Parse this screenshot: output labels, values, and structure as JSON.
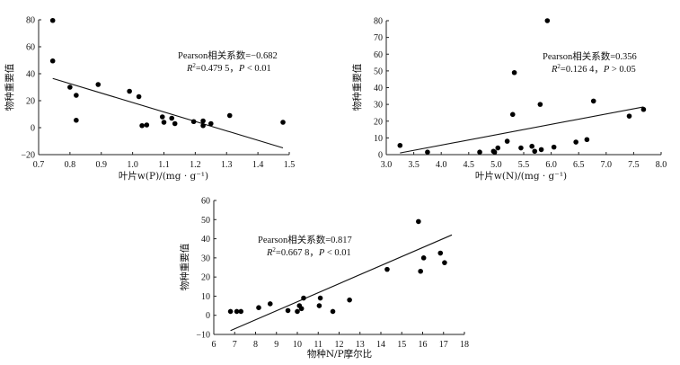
{
  "chart_data": [
    {
      "type": "scatter",
      "xlabel": "叶片w(P)/(mg · g⁻¹)",
      "ylabel": "物种重要值",
      "xlim": [
        0.7,
        1.5
      ],
      "ylim": [
        -20,
        80
      ],
      "xticks": [
        "0.7",
        "0.8",
        "0.9",
        "1.0",
        "1.1",
        "1.2",
        "1.3",
        "1.4",
        "1.5"
      ],
      "yticks": [
        "−20",
        "0",
        "20",
        "40",
        "60",
        "80"
      ],
      "points": [
        {
          "x": 0.745,
          "y": 79.5
        },
        {
          "x": 0.745,
          "y": 49.5
        },
        {
          "x": 0.8,
          "y": 30
        },
        {
          "x": 0.82,
          "y": 24
        },
        {
          "x": 0.82,
          "y": 5.5
        },
        {
          "x": 0.89,
          "y": 32
        },
        {
          "x": 0.99,
          "y": 27
        },
        {
          "x": 1.02,
          "y": 23
        },
        {
          "x": 1.03,
          "y": 1.5
        },
        {
          "x": 1.045,
          "y": 2
        },
        {
          "x": 1.095,
          "y": 8
        },
        {
          "x": 1.1,
          "y": 4
        },
        {
          "x": 1.125,
          "y": 7
        },
        {
          "x": 1.135,
          "y": 3
        },
        {
          "x": 1.195,
          "y": 4.5
        },
        {
          "x": 1.225,
          "y": 5
        },
        {
          "x": 1.225,
          "y": 1.5
        },
        {
          "x": 1.25,
          "y": 3
        },
        {
          "x": 1.31,
          "y": 9
        },
        {
          "x": 1.48,
          "y": 4
        }
      ],
      "fit_line": {
        "x1": 0.745,
        "y1": 36.5,
        "x2": 1.48,
        "y2": -15
      },
      "annotation": {
        "line1_prefix": "Pearson相关系数=",
        "line1_value": "−0.682",
        "r2_label": "R",
        "r2_sup": "2",
        "r2_value": "=0.479 5，",
        "p_label": "P",
        "p_value": " < 0.01"
      }
    },
    {
      "type": "scatter",
      "xlabel": "叶片w(N)/(mg · g⁻¹)",
      "ylabel": "物种重要值",
      "xlim": [
        3.0,
        8.0
      ],
      "ylim": [
        0,
        80
      ],
      "xticks": [
        "3.0",
        "3.5",
        "4.0",
        "4.5",
        "5.0",
        "5.5",
        "6.0",
        "6.5",
        "7.0",
        "7.5",
        "8.0"
      ],
      "yticks": [
        "0",
        "10",
        "20",
        "30",
        "40",
        "50",
        "60",
        "70",
        "80"
      ],
      "points": [
        {
          "x": 3.25,
          "y": 5.5
        },
        {
          "x": 3.75,
          "y": 1.5
        },
        {
          "x": 4.7,
          "y": 1.5
        },
        {
          "x": 4.95,
          "y": 2
        },
        {
          "x": 4.97,
          "y": 1.5
        },
        {
          "x": 5.03,
          "y": 4
        },
        {
          "x": 5.2,
          "y": 8
        },
        {
          "x": 5.3,
          "y": 24
        },
        {
          "x": 5.33,
          "y": 49
        },
        {
          "x": 5.45,
          "y": 4
        },
        {
          "x": 5.65,
          "y": 5
        },
        {
          "x": 5.7,
          "y": 2
        },
        {
          "x": 5.8,
          "y": 30
        },
        {
          "x": 5.82,
          "y": 3
        },
        {
          "x": 5.93,
          "y": 80
        },
        {
          "x": 6.05,
          "y": 4.5
        },
        {
          "x": 6.45,
          "y": 7.5
        },
        {
          "x": 6.65,
          "y": 9
        },
        {
          "x": 6.77,
          "y": 32
        },
        {
          "x": 7.42,
          "y": 23
        },
        {
          "x": 7.68,
          "y": 27
        }
      ],
      "fit_line": {
        "x1": 3.25,
        "y1": 1,
        "x2": 7.68,
        "y2": 28.5
      },
      "annotation": {
        "line1_prefix": "Pearson相关系数=",
        "line1_value": "0.356",
        "r2_label": "R",
        "r2_sup": "2",
        "r2_value": "=0.126 4，",
        "p_label": "P",
        "p_value": " > 0.05"
      }
    },
    {
      "type": "scatter",
      "xlabel": "物种N/P摩尔比",
      "ylabel": "物种重要值",
      "xlim": [
        6,
        18
      ],
      "ylim": [
        -10,
        60
      ],
      "xticks": [
        "6",
        "7",
        "8",
        "9",
        "10",
        "11",
        "12",
        "13",
        "14",
        "15",
        "16",
        "17",
        "18"
      ],
      "yticks": [
        "−10",
        "0",
        "10",
        "20",
        "30",
        "40",
        "50",
        "60"
      ],
      "points": [
        {
          "x": 6.8,
          "y": 2
        },
        {
          "x": 7.1,
          "y": 2
        },
        {
          "x": 7.3,
          "y": 2
        },
        {
          "x": 8.15,
          "y": 4
        },
        {
          "x": 8.7,
          "y": 6
        },
        {
          "x": 9.55,
          "y": 2.5
        },
        {
          "x": 10.0,
          "y": 2
        },
        {
          "x": 10.1,
          "y": 5
        },
        {
          "x": 10.2,
          "y": 3.5
        },
        {
          "x": 10.3,
          "y": 9
        },
        {
          "x": 11.05,
          "y": 5
        },
        {
          "x": 11.1,
          "y": 9
        },
        {
          "x": 11.7,
          "y": 2
        },
        {
          "x": 12.5,
          "y": 8
        },
        {
          "x": 14.3,
          "y": 24
        },
        {
          "x": 15.8,
          "y": 49
        },
        {
          "x": 15.9,
          "y": 23
        },
        {
          "x": 16.05,
          "y": 30
        },
        {
          "x": 16.85,
          "y": 32.5
        },
        {
          "x": 17.05,
          "y": 27.5
        }
      ],
      "fit_line": {
        "x1": 6.8,
        "y1": -8,
        "x2": 17.4,
        "y2": 42
      },
      "annotation": {
        "line1_prefix": "Pearson相关系数=",
        "line1_value": "0.817",
        "r2_label": "R",
        "r2_sup": "2",
        "r2_value": "=0.667 8，",
        "p_label": "P",
        "p_value": " < 0.01"
      }
    }
  ]
}
